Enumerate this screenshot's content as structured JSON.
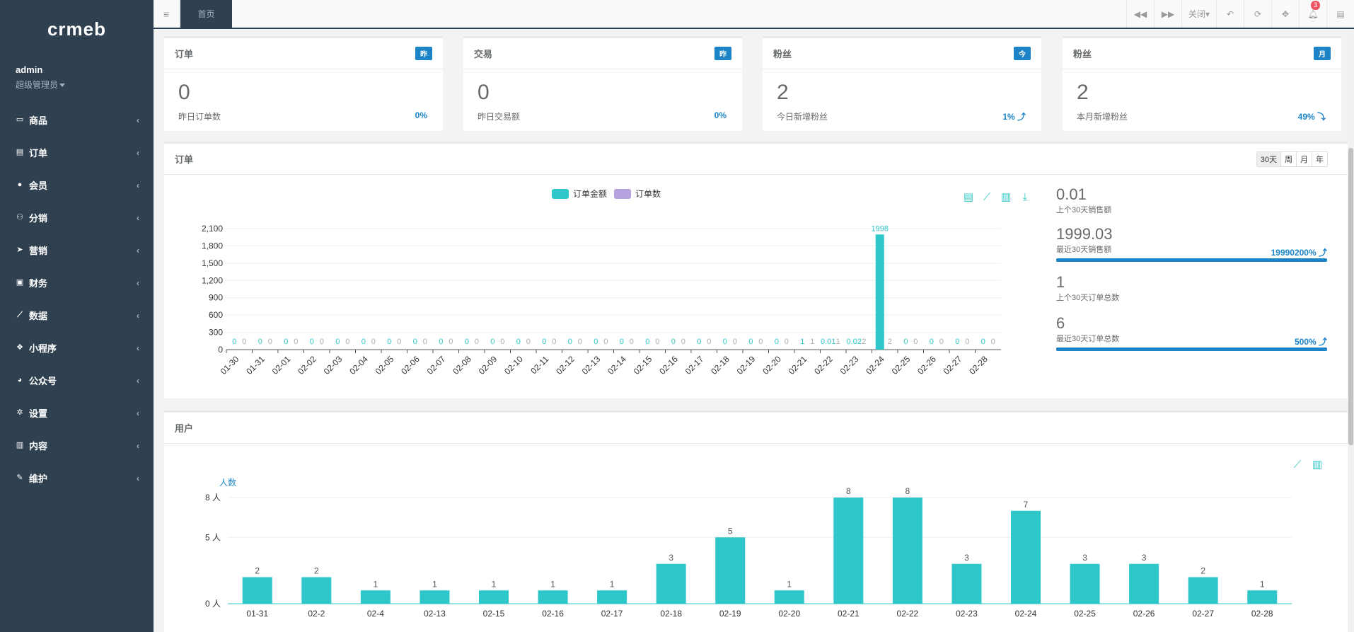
{
  "sidebar": {
    "logo": "crmeb",
    "user_name": "admin",
    "user_role": "超级管理员",
    "menu": [
      {
        "label": "商品",
        "icon": "laptop-icon",
        "glyph": "▭"
      },
      {
        "label": "订单",
        "icon": "file-icon",
        "glyph": "▤"
      },
      {
        "label": "会员",
        "icon": "user-icon",
        "glyph": "●"
      },
      {
        "label": "分销",
        "icon": "users-icon",
        "glyph": "⚇"
      },
      {
        "label": "营销",
        "icon": "send-icon",
        "glyph": "➤"
      },
      {
        "label": "财务",
        "icon": "money-icon",
        "glyph": "▣"
      },
      {
        "label": "数据",
        "icon": "line-chart-icon",
        "glyph": "⟋"
      },
      {
        "label": "小程序",
        "icon": "cubes-icon",
        "glyph": "❖"
      },
      {
        "label": "公众号",
        "icon": "wechat-icon",
        "glyph": "◕"
      },
      {
        "label": "设置",
        "icon": "gear-icon",
        "glyph": "✲"
      },
      {
        "label": "内容",
        "icon": "book-icon",
        "glyph": "▥"
      },
      {
        "label": "维护",
        "icon": "wrench-icon",
        "glyph": "✎"
      }
    ]
  },
  "topbar": {
    "home_tab": "首页",
    "close_label": "关闭",
    "notification_count": "3"
  },
  "stats": [
    {
      "title": "订单",
      "tag": "昨",
      "value": "0",
      "sub": "昨日订单数",
      "pct": "0%"
    },
    {
      "title": "交易",
      "tag": "昨",
      "value": "0",
      "sub": "昨日交易额",
      "pct": "0%"
    },
    {
      "title": "粉丝",
      "tag": "今",
      "value": "2",
      "sub": "今日新增粉丝",
      "pct": "1% ⤴"
    },
    {
      "title": "粉丝",
      "tag": "月",
      "value": "2",
      "sub": "本月新增粉丝",
      "pct": "49% ⤵"
    }
  ],
  "order_panel": {
    "title": "订单",
    "ranges": [
      "30天",
      "周",
      "月",
      "年"
    ],
    "legend": [
      "订单金额",
      "订单数"
    ],
    "side_stats": [
      {
        "value": "0.01",
        "label": "上个30天销售额",
        "pct": "",
        "bar": 0
      },
      {
        "value": "1999.03",
        "label": "最近30天销售额",
        "pct": "19990200% ⤴",
        "bar": 1
      },
      {
        "value": "1",
        "label": "上个30天订单总数",
        "pct": "",
        "bar": 0
      },
      {
        "value": "6",
        "label": "最近30天订单总数",
        "pct": "500% ⤴",
        "bar": 1
      }
    ]
  },
  "user_panel": {
    "title": "用户",
    "unit_label": "人数"
  },
  "colors": {
    "teal": "#2ec7c9",
    "purple": "#b6a2de",
    "blue": "#1c84c6",
    "sidebar": "#2f4050"
  },
  "chart_data": [
    {
      "type": "bar",
      "title": "",
      "categories": [
        "01-30",
        "01-31",
        "02-01",
        "02-02",
        "02-03",
        "02-04",
        "02-05",
        "02-06",
        "02-07",
        "02-08",
        "02-09",
        "02-10",
        "02-11",
        "02-12",
        "02-13",
        "02-14",
        "02-15",
        "02-16",
        "02-17",
        "02-18",
        "02-19",
        "02-20",
        "02-21",
        "02-22",
        "02-23",
        "02-24",
        "02-25",
        "02-26",
        "02-27",
        "02-28"
      ],
      "series": [
        {
          "name": "订单金额",
          "values": [
            0,
            0,
            0,
            0,
            0,
            0,
            0,
            0,
            0,
            0,
            0,
            0,
            0,
            0,
            0,
            0,
            0,
            0,
            0,
            0,
            0,
            0,
            1,
            0.01,
            0.02,
            1998,
            0,
            0,
            0,
            0
          ]
        },
        {
          "name": "订单数",
          "values": [
            0,
            0,
            0,
            0,
            0,
            0,
            0,
            0,
            0,
            0,
            0,
            0,
            0,
            0,
            0,
            0,
            0,
            0,
            0,
            0,
            0,
            0,
            1,
            1,
            2,
            2,
            0,
            0,
            0,
            0
          ]
        }
      ],
      "value_labels": [
        [
          "0",
          "0"
        ],
        [
          "0",
          "0"
        ],
        [
          "0",
          "0"
        ],
        [
          "0",
          "0"
        ],
        [
          "0",
          "0"
        ],
        [
          "0",
          "0"
        ],
        [
          "0",
          "0"
        ],
        [
          "0",
          "0"
        ],
        [
          "0",
          "0"
        ],
        [
          "0",
          "0"
        ],
        [
          "0",
          "0"
        ],
        [
          "0",
          "0"
        ],
        [
          "0",
          "0"
        ],
        [
          "0",
          "0"
        ],
        [
          "0",
          "0"
        ],
        [
          "0",
          "0"
        ],
        [
          "0",
          "0"
        ],
        [
          "0",
          "0"
        ],
        [
          "0",
          "0"
        ],
        [
          "0",
          "0"
        ],
        [
          "0",
          "0"
        ],
        [
          "0",
          "0"
        ],
        [
          "1",
          "1"
        ],
        [
          "0.01",
          "1"
        ],
        [
          "0.02",
          "2"
        ],
        [
          "1998",
          "2"
        ],
        [
          "0",
          "0"
        ],
        [
          "0",
          "0"
        ],
        [
          "0",
          "0"
        ],
        [
          "0",
          "0"
        ]
      ],
      "yticks": [
        "0",
        "300",
        "600",
        "900",
        "1,200",
        "1,500",
        "1,800",
        "2,100"
      ],
      "ylim": [
        0,
        2100
      ],
      "legend_position": "top-center"
    },
    {
      "type": "bar",
      "title": "",
      "ylabel": "人数",
      "categories": [
        "01-31",
        "02-2",
        "02-4",
        "02-13",
        "02-15",
        "02-16",
        "02-17",
        "02-18",
        "02-19",
        "02-20",
        "02-21",
        "02-22",
        "02-23",
        "02-24",
        "02-25",
        "02-26",
        "02-27",
        "02-28"
      ],
      "values": [
        2,
        2,
        1,
        1,
        1,
        1,
        1,
        3,
        5,
        1,
        8,
        8,
        3,
        7,
        3,
        3,
        2,
        1
      ],
      "yticks": [
        "0 人",
        "5 人",
        "8 人"
      ],
      "ytick_values": [
        0,
        5,
        8
      ],
      "ylim": [
        0,
        8
      ]
    }
  ]
}
